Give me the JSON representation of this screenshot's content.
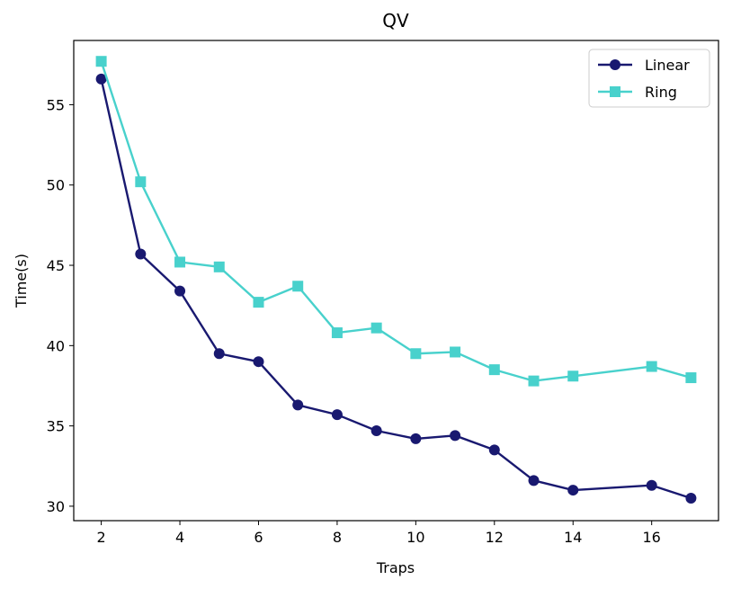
{
  "chart_data": {
    "type": "line",
    "title": "QV",
    "xlabel": "Traps",
    "ylabel": "Time(s)",
    "xlim": [
      1.3,
      17.7
    ],
    "ylim": [
      29.1,
      59.0
    ],
    "xticks": [
      2,
      4,
      6,
      8,
      10,
      12,
      14,
      16
    ],
    "yticks": [
      30,
      35,
      40,
      45,
      50,
      55
    ],
    "legend_position": "top-right",
    "grid": false,
    "series": [
      {
        "name": "Linear",
        "color": "#191970",
        "marker": "circle",
        "x": [
          2,
          3,
          4,
          5,
          6,
          7,
          8,
          9,
          10,
          11,
          12,
          13,
          14,
          16,
          17
        ],
        "y": [
          56.6,
          45.7,
          43.4,
          39.5,
          39.0,
          36.3,
          35.7,
          34.7,
          34.2,
          34.4,
          33.5,
          31.6,
          31.0,
          31.3,
          30.5
        ]
      },
      {
        "name": "Ring",
        "color": "#48D1CC",
        "marker": "square",
        "x": [
          2,
          3,
          4,
          5,
          6,
          7,
          8,
          9,
          10,
          11,
          12,
          13,
          14,
          16,
          17
        ],
        "y": [
          57.7,
          50.2,
          45.2,
          44.9,
          42.7,
          43.7,
          40.8,
          41.1,
          39.5,
          39.6,
          38.5,
          37.8,
          38.1,
          38.7,
          38.0
        ]
      }
    ]
  }
}
